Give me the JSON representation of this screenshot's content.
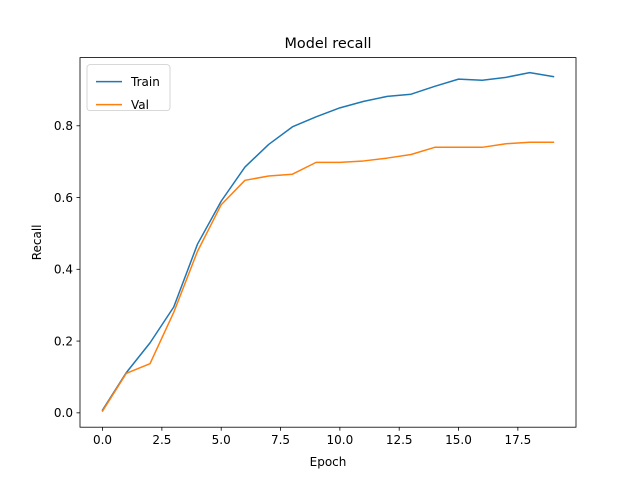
{
  "chart_data": {
    "type": "line",
    "title": "Model recall",
    "xlabel": "Epoch",
    "ylabel": "Recall",
    "xlim": [
      -0.95,
      19.95
    ],
    "ylim": [
      -0.04,
      0.99
    ],
    "xticks": [
      0.0,
      2.5,
      5.0,
      7.5,
      10.0,
      12.5,
      15.0,
      17.5
    ],
    "xtick_labels": [
      "0.0",
      "2.5",
      "5.0",
      "7.5",
      "10.0",
      "12.5",
      "15.0",
      "17.5"
    ],
    "yticks": [
      0.0,
      0.2,
      0.4,
      0.6,
      0.8
    ],
    "ytick_labels": [
      "0.0",
      "0.2",
      "0.4",
      "0.6",
      "0.8"
    ],
    "grid": false,
    "legend_position": "upper-left",
    "x": [
      0,
      1,
      2,
      3,
      4,
      5,
      6,
      7,
      8,
      9,
      10,
      11,
      12,
      13,
      14,
      15,
      16,
      17,
      18,
      19
    ],
    "series": [
      {
        "name": "Train",
        "color": "#1f77b4",
        "values": [
          0.008,
          0.112,
          0.195,
          0.295,
          0.47,
          0.59,
          0.685,
          0.748,
          0.797,
          0.825,
          0.85,
          0.868,
          0.882,
          0.888,
          0.91,
          0.93,
          0.927,
          0.935,
          0.948,
          0.937
        ]
      },
      {
        "name": "Val",
        "color": "#ff7f0e",
        "values": [
          0.005,
          0.11,
          0.137,
          0.28,
          0.45,
          0.58,
          0.648,
          0.66,
          0.665,
          0.698,
          0.698,
          0.702,
          0.71,
          0.72,
          0.74,
          0.74,
          0.74,
          0.75,
          0.754,
          0.754
        ]
      }
    ]
  }
}
